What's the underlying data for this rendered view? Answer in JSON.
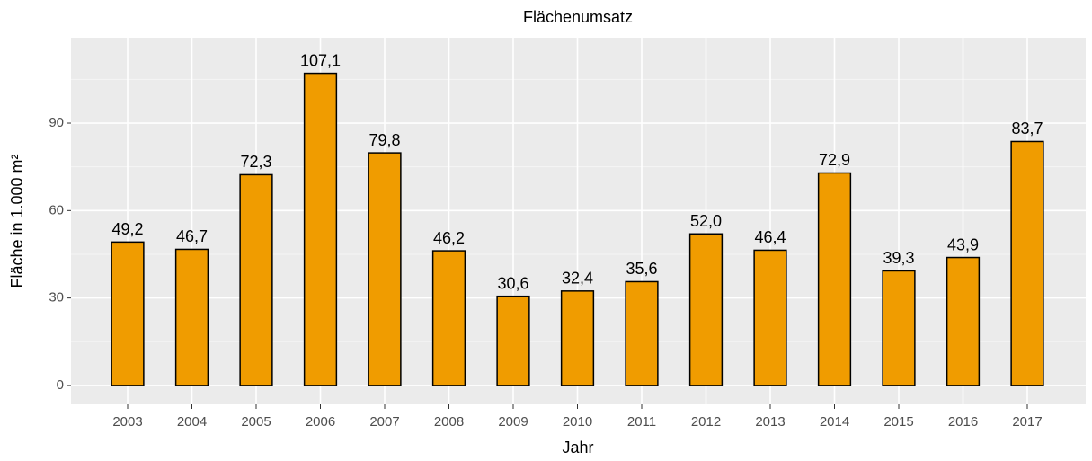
{
  "chart_data": {
    "type": "bar",
    "title": "Flächenumsatz",
    "x_label": "Jahr",
    "y_label": "Fläche in 1.000 m²",
    "categories": [
      "2003",
      "2004",
      "2005",
      "2006",
      "2007",
      "2008",
      "2009",
      "2010",
      "2011",
      "2012",
      "2013",
      "2014",
      "2015",
      "2016",
      "2017"
    ],
    "values": [
      49.2,
      46.7,
      72.3,
      107.1,
      79.8,
      46.2,
      30.6,
      32.4,
      35.6,
      52.0,
      46.4,
      72.9,
      39.3,
      43.9,
      83.7
    ],
    "value_labels": [
      "49,2",
      "46,7",
      "72,3",
      "107,1",
      "79,8",
      "46,2",
      "30,6",
      "32,4",
      "35,6",
      "52,0",
      "46,4",
      "72,9",
      "39,3",
      "43,9",
      "83,7"
    ],
    "color": "#f09c00",
    "ylim": [
      -6.5,
      119.3
    ],
    "yticks": [
      0,
      30,
      60,
      90
    ],
    "grid": true
  }
}
